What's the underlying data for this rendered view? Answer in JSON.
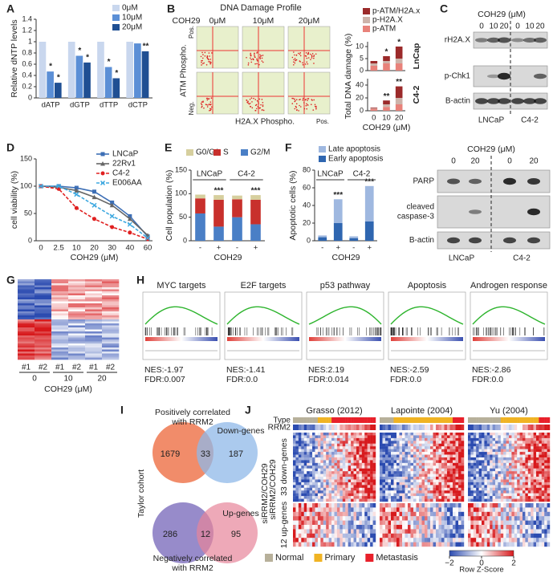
{
  "chart_data": [
    {
      "type": "bar",
      "ylabel": "Relative dNTP levels",
      "categories": [
        "dATP",
        "dGTP",
        "dTTP",
        "dCTP"
      ],
      "series": [
        {
          "name": "0μM",
          "color": "#c9d7ee",
          "values": [
            1.0,
            1.0,
            1.0,
            1.0
          ]
        },
        {
          "name": "10μM",
          "color": "#5b8fd6",
          "values": [
            0.47,
            0.75,
            0.55,
            0.97
          ],
          "significance": [
            "*",
            "*",
            "*",
            null
          ]
        },
        {
          "name": "20μM",
          "color": "#1f4f93",
          "values": [
            0.27,
            0.63,
            0.35,
            0.83
          ],
          "significance": [
            "*",
            "*",
            "*",
            "**"
          ]
        }
      ],
      "ylim": [
        0,
        1.4
      ],
      "yticks": [
        0,
        0.2,
        0.4,
        0.6,
        0.8,
        1,
        1.2,
        1.4
      ],
      "legend": true
    },
    {
      "type": "bar",
      "stacked": true,
      "ylabel": "Total DNA damage (%)",
      "subtitle": "LnCap",
      "categories": [
        null,
        null,
        null
      ],
      "series": [
        {
          "name": "p-ATM",
          "color": "#e8827a",
          "values": [
            2,
            3,
            3
          ]
        },
        {
          "name": "p-H2A.X",
          "color": "#cdb3aa",
          "values": [
            1,
            1,
            2
          ]
        },
        {
          "name": "p-ATM/H2A.x",
          "color": "#9b2a2a",
          "values": [
            1,
            2,
            5
          ]
        }
      ],
      "annotations": [
        null,
        "*",
        "*"
      ],
      "ylim": [
        0,
        12
      ],
      "yticks": [
        0,
        5,
        10
      ],
      "legend": true
    },
    {
      "type": "bar",
      "stacked": true,
      "subtitle": "C4-2",
      "xlabel": "COH29 (μM)",
      "categories": [
        "0",
        "10",
        "20"
      ],
      "series": [
        {
          "color": "#e8827a",
          "values": [
            3,
            6,
            10
          ]
        },
        {
          "color": "#cdb3aa",
          "values": [
            1,
            4,
            10
          ]
        },
        {
          "color": "#9b2a2a",
          "values": [
            1,
            6,
            18
          ]
        }
      ],
      "annotations": [
        null,
        "**",
        "**"
      ],
      "ylim": [
        0,
        50
      ],
      "yticks": [
        0,
        20,
        40
      ]
    },
    {
      "type": "line",
      "ylabel": "cell viability (%)",
      "xlabel": "COH29 (μM)",
      "categories": [
        "0",
        "2.5",
        "10",
        "20",
        "30",
        "40",
        "60"
      ],
      "series": [
        {
          "name": "LNCaP",
          "color": "#3d6fb6",
          "marker": "square",
          "values": [
            100,
            100,
            97,
            90,
            70,
            45,
            8
          ]
        },
        {
          "name": "22Rv1",
          "color": "#666666",
          "marker": "triangle",
          "values": [
            100,
            98,
            92,
            80,
            65,
            40,
            10
          ]
        },
        {
          "name": "C4-2",
          "color": "#e02020",
          "marker": "circle",
          "dashed": true,
          "values": [
            100,
            95,
            60,
            40,
            25,
            15,
            3
          ]
        },
        {
          "name": "E006AA",
          "color": "#3fa9e0",
          "marker": "x",
          "dashed": true,
          "values": [
            100,
            100,
            85,
            65,
            45,
            30,
            5
          ]
        }
      ],
      "ylim": [
        0,
        150
      ],
      "yticks": [
        0,
        50,
        100,
        150
      ],
      "legend": true
    },
    {
      "type": "bar",
      "stacked": true,
      "ylabel": "Cell population (%)",
      "xlabel": "COH29",
      "categories": [
        "-",
        "+",
        "-",
        "+"
      ],
      "group_labels": [
        "LNCaP",
        "C4-2"
      ],
      "series": [
        {
          "name": "G2/M",
          "color": "#4a7fc6",
          "values": [
            58,
            30,
            50,
            35
          ]
        },
        {
          "name": "S",
          "color": "#c8302c",
          "values": [
            32,
            57,
            38,
            52
          ]
        },
        {
          "name": "G0/G1",
          "color": "#d6cf9e",
          "values": [
            8,
            10,
            8,
            10
          ]
        }
      ],
      "annotations": [
        null,
        "***",
        null,
        "***"
      ],
      "ylim": [
        0,
        150
      ],
      "yticks": [
        0,
        50,
        100,
        150
      ],
      "legend": true
    },
    {
      "type": "bar",
      "stacked": true,
      "ylabel": "Apoptotic cells (%)",
      "xlabel": "COH29",
      "categories": [
        "-",
        "+",
        "-",
        "+"
      ],
      "group_labels": [
        "LNCaP",
        "C4-2"
      ],
      "series": [
        {
          "name": "Early apoptosis",
          "color": "#2f66b0",
          "values": [
            4,
            20,
            3,
            22
          ]
        },
        {
          "name": "Late apoptosis",
          "color": "#9fb8e0",
          "values": [
            2,
            27,
            2,
            40
          ]
        }
      ],
      "annotations": [
        null,
        "***",
        null,
        "***"
      ],
      "ylim": [
        0,
        80
      ],
      "yticks": [
        0,
        20,
        40,
        60,
        80
      ],
      "legend": true
    }
  ],
  "panel_labels": [
    "A",
    "B",
    "C",
    "D",
    "E",
    "F",
    "G",
    "H",
    "I",
    "J"
  ],
  "flow": {
    "title": "DNA Damage Profile",
    "treatment": "COH29",
    "doses": [
      "0μM",
      "10μM",
      "20μM"
    ],
    "y_label": "ATM Phospho.",
    "x_label": "H2A.X Phospho.",
    "pos": "Pos.",
    "neg": "Neg."
  },
  "blot_c": {
    "title": "COH29 (μM)",
    "doses": [
      "0",
      "10",
      "20",
      "0",
      "10",
      "20"
    ],
    "proteins": [
      [
        "rH2A.X"
      ],
      [
        "p-Chk1"
      ],
      [
        "B-actin"
      ]
    ],
    "cells": [
      "LNCaP",
      "C4-2"
    ]
  },
  "blot_f": {
    "title": "COH29 (μM)",
    "doses": [
      "0",
      "20",
      "0",
      "20"
    ],
    "proteins": [
      [
        "PARP"
      ],
      [
        "cleaved",
        "caspase-3"
      ],
      [
        "B-actin"
      ]
    ],
    "cells": [
      "LNCaP",
      "C4-2"
    ]
  },
  "heatmap_g": {
    "replicates": [
      "#1",
      "#2",
      "#1",
      "#2",
      "#1",
      "#2"
    ],
    "doses": [
      "0",
      "10",
      "20"
    ],
    "x_label": "COH29 (μM)"
  },
  "gsea": [
    {
      "title": "MYC targets",
      "nes": "NES:-1.97",
      "fdr": "FDR:0.007"
    },
    {
      "title": "E2F targets",
      "nes": "NES:-1.41",
      "fdr": "FDR:0.0"
    },
    {
      "title": "p53 pathway",
      "nes": "NES:2.19",
      "fdr": "FDR:0.014"
    },
    {
      "title": "Apoptosis",
      "nes": "NES:-2.59",
      "fdr": "FDR:0.0"
    },
    {
      "title": "Androgen response",
      "nes": "NES:-2.86",
      "fdr": "FDR:0.0"
    }
  ],
  "venn": {
    "top_label": [
      "Positively correlated",
      "with RRM2"
    ],
    "top_right": "Down-genes",
    "top_counts": [
      1679,
      33,
      187
    ],
    "bottom_counts": [
      286,
      12,
      95
    ],
    "bottom_right": "Up-genes",
    "bottom_label": [
      "Negatively correlated",
      "with RRM2"
    ],
    "left": "Taylor cohort",
    "right": "siRRM2/COH29"
  },
  "heatmap_j": {
    "datasets": [
      "Grasso (2012)",
      "Lapointe (2004)",
      "Yu (2004)"
    ],
    "rows": [
      "Type",
      "RRM2"
    ],
    "side": "siRRM2/COH29",
    "down": "33 down-genes",
    "up": "12 up-genes",
    "legend": [
      {
        "name": "Normal",
        "color": "#b7b09a"
      },
      {
        "name": "Primary",
        "color": "#f0b323"
      },
      {
        "name": "Metastasis",
        "color": "#e8202a"
      }
    ],
    "scale_lim": [
      -2,
      2
    ],
    "scale_ticks": [
      {
        "value": -2,
        "label": "−2"
      },
      0,
      2
    ],
    "scale_label": "Row Z-Score"
  }
}
